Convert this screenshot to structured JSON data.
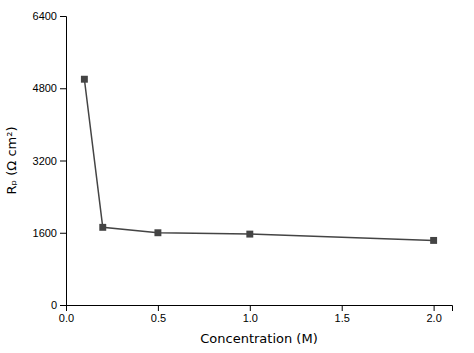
{
  "chart_data": {
    "type": "line",
    "x": [
      0.1,
      0.2,
      0.5,
      1.0,
      2.0
    ],
    "values": [
      5000,
      1720,
      1600,
      1570,
      1430
    ],
    "xlabel": "Concentration (M)",
    "ylabel": "Rₚ (Ω cm²)",
    "xlim": [
      0.0,
      2.1
    ],
    "ylim": [
      0,
      6400
    ],
    "xticks": [
      {
        "value": 0.0,
        "label": "0.0"
      },
      0.5,
      {
        "value": 1.0,
        "label": "1.0"
      },
      1.5,
      {
        "value": 2.0,
        "label": "2.0"
      }
    ],
    "yticks": [
      0,
      1600,
      3200,
      4800,
      6400
    ],
    "color": "#444444",
    "marker": "square",
    "grid": false
  }
}
